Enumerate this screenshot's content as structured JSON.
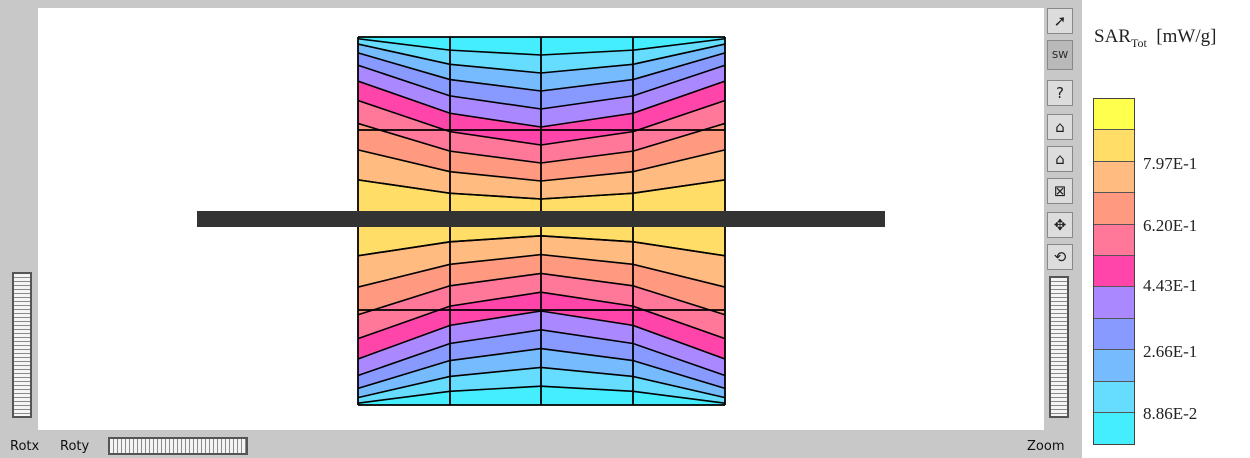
{
  "viewer": {
    "labels": {
      "rotx": "Rotx",
      "roty": "Roty",
      "zoom": "Zoom"
    },
    "tools": [
      {
        "name": "pointer-icon",
        "glyph": "➚"
      },
      {
        "name": "sw-icon",
        "glyph": "SW"
      },
      {
        "name": "help-icon",
        "glyph": "?"
      },
      {
        "name": "home-icon",
        "glyph": "⌂"
      },
      {
        "name": "set-home-icon",
        "glyph": "⌂"
      },
      {
        "name": "fit-icon",
        "glyph": "⊠"
      },
      {
        "name": "pan-icon",
        "glyph": "✥"
      },
      {
        "name": "rotate-icon",
        "glyph": "⟲"
      }
    ]
  },
  "legend": {
    "title_main": "SAR",
    "title_sub": "Tot",
    "unit": "[mW/g]",
    "ticks": [
      "7.97E-1",
      "6.20E-1",
      "4.43E-1",
      "2.66E-1",
      "8.86E-2"
    ],
    "colors": [
      "#ffff4d",
      "#ffdd66",
      "#ffbb80",
      "#ff9980",
      "#ff7799",
      "#ff44aa",
      "#aa88ff",
      "#8899ff",
      "#77bbff",
      "#66ddff",
      "#44eeff"
    ]
  },
  "plot": {
    "grid_color": "#000000",
    "dipole_color": "#333333",
    "inner_fill": "#cccc22"
  }
}
